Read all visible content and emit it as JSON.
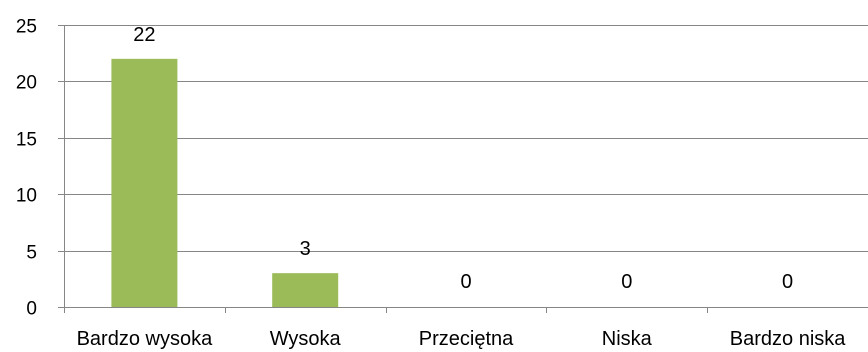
{
  "chart_data": {
    "type": "bar",
    "categories": [
      "Bardzo wysoka",
      "Wysoka",
      "Przeciętna",
      "Niska",
      "Bardzo niska"
    ],
    "values": [
      22,
      3,
      0,
      0,
      0
    ],
    "data_labels": [
      "22",
      "3",
      "0",
      "0",
      "0"
    ],
    "title": "",
    "xlabel": "",
    "ylabel": "",
    "ylim": [
      0,
      25
    ],
    "yticks": [
      "0",
      "5",
      "10",
      "15",
      "20",
      "25"
    ],
    "grid": true,
    "legend": "none",
    "bar_color": "#9BBB59"
  }
}
